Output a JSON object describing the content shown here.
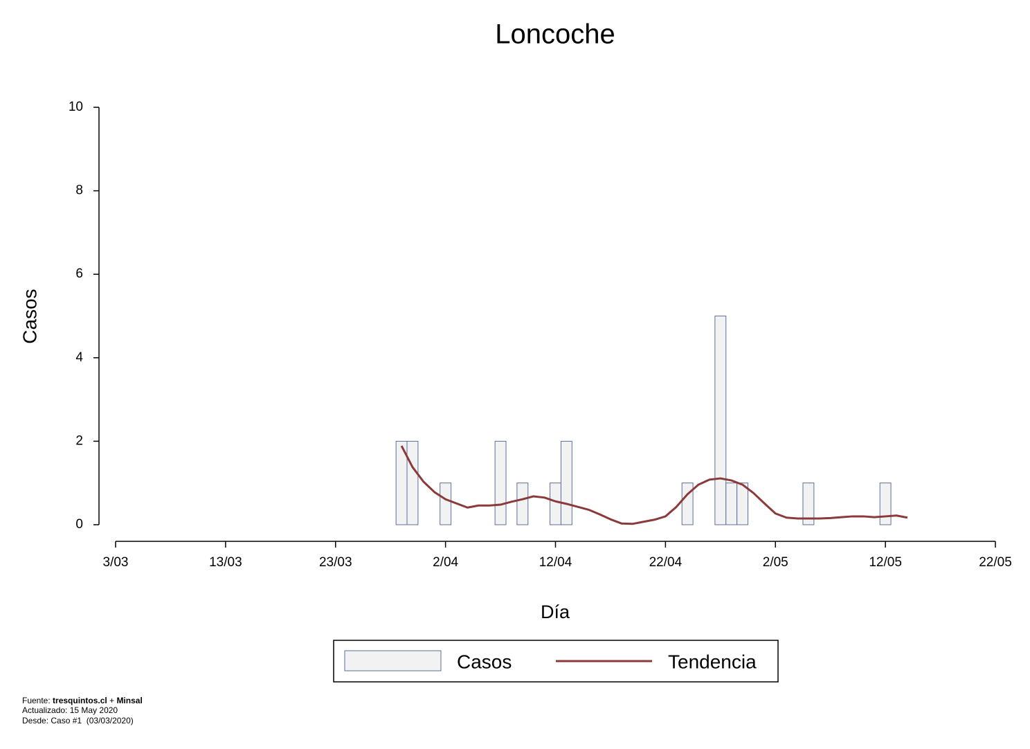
{
  "chart_data": {
    "type": "bar",
    "title": "Loncoche",
    "x_label": "Día",
    "y_label": "Casos",
    "xlim": [
      "3/03",
      "22/05"
    ],
    "xticks": [
      "3/03",
      "13/03",
      "23/03",
      "2/04",
      "12/04",
      "22/04",
      "2/05",
      "12/05",
      "22/05"
    ],
    "ylim": [
      0,
      10
    ],
    "yticks": [
      0,
      2,
      4,
      6,
      8,
      10
    ],
    "series": [
      {
        "name": "Casos",
        "type": "bar",
        "color": "#f2f2f2",
        "stroke": "#5a6e9a",
        "x": [
          "29/03",
          "30/03",
          "2/04",
          "7/04",
          "9/04",
          "12/04",
          "13/04",
          "24/04",
          "27/04",
          "28/04",
          "29/04",
          "5/05",
          "12/05"
        ],
        "values": [
          2,
          2,
          1,
          2,
          1,
          1,
          2,
          1,
          5,
          1,
          1,
          1,
          1
        ]
      },
      {
        "name": "Tendencia",
        "type": "line",
        "color": "#8b3a3a",
        "x": [
          "29/03",
          "30/03",
          "31/03",
          "1/04",
          "2/04",
          "3/04",
          "4/04",
          "5/04",
          "6/04",
          "7/04",
          "8/04",
          "9/04",
          "10/04",
          "11/04",
          "12/04",
          "13/04",
          "14/04",
          "15/04",
          "16/04",
          "17/04",
          "18/04",
          "19/04",
          "20/04",
          "21/04",
          "22/04",
          "23/04",
          "24/04",
          "25/04",
          "26/04",
          "27/04",
          "28/04",
          "29/04",
          "30/04",
          "1/05",
          "2/05",
          "3/05",
          "4/05",
          "5/05",
          "6/05",
          "7/05",
          "8/05",
          "9/05",
          "10/05",
          "11/05",
          "12/05",
          "13/05",
          "14/05"
        ],
        "values": [
          1.89,
          1.38,
          1.03,
          0.78,
          0.61,
          0.51,
          0.41,
          0.46,
          0.46,
          0.48,
          0.55,
          0.61,
          0.68,
          0.65,
          0.56,
          0.5,
          0.43,
          0.36,
          0.25,
          0.13,
          0.03,
          0.02,
          0.07,
          0.12,
          0.2,
          0.43,
          0.73,
          0.96,
          1.08,
          1.11,
          1.06,
          0.96,
          0.76,
          0.51,
          0.27,
          0.17,
          0.15,
          0.15,
          0.15,
          0.16,
          0.18,
          0.2,
          0.2,
          0.18,
          0.2,
          0.22,
          0.17
        ]
      }
    ],
    "footer": {
      "source_label": "Fuente:",
      "source_1": "tresquintos.cl",
      "plus": "+",
      "source_2": "Minsal",
      "updated": "Actualizado: 15 May 2020",
      "since": "Desde: Caso #1  (03/03/2020)"
    }
  }
}
